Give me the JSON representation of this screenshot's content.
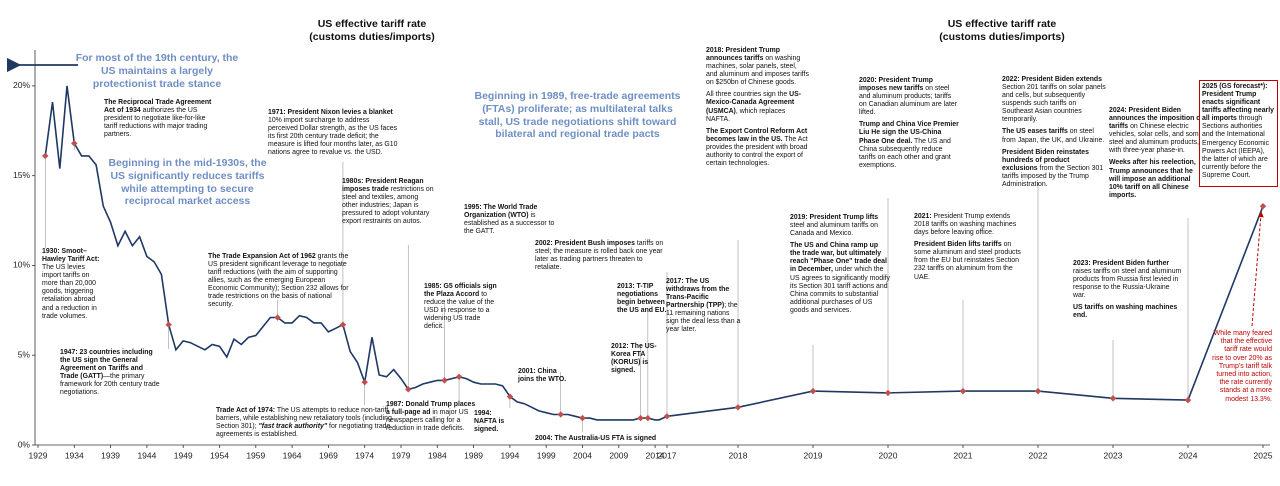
{
  "chart_data": {
    "type": "line",
    "titles": [
      [
        "US effective tariff rate",
        "(customs duties/imports)"
      ],
      [
        "US effective tariff rate",
        "(customs duties/imports)"
      ]
    ],
    "x": [
      1930,
      1931,
      1932,
      1933,
      1934,
      1935,
      1936,
      1937,
      1938,
      1939,
      1940,
      1941,
      1942,
      1943,
      1944,
      1945,
      1946,
      1947,
      1948,
      1949,
      1950,
      1951,
      1952,
      1953,
      1954,
      1955,
      1956,
      1957,
      1958,
      1959,
      1960,
      1961,
      1962,
      1963,
      1964,
      1965,
      1966,
      1967,
      1968,
      1969,
      1970,
      1971,
      1972,
      1973,
      1974,
      1975,
      1976,
      1977,
      1978,
      1979,
      1980,
      1981,
      1982,
      1983,
      1984,
      1985,
      1986,
      1987,
      1988,
      1989,
      1990,
      1991,
      1992,
      1993,
      1994,
      1995,
      1996,
      1997,
      1998,
      1999,
      2000,
      2001,
      2002,
      2003,
      2004,
      2005,
      2006,
      2007,
      2008,
      2009,
      2010,
      2011,
      2012,
      2013,
      2014,
      2015,
      2016,
      2017,
      2018,
      2019,
      2020,
      2021,
      2022,
      2023,
      2024,
      2025
    ],
    "series": [
      {
        "color": "#1f3864",
        "marker_color": "#c0504d",
        "values": [
          16.1,
          19.1,
          15.4,
          20.0,
          16.8,
          16.1,
          16.1,
          15.6,
          13.3,
          12.4,
          11.1,
          11.9,
          11.1,
          11.6,
          10.5,
          10.2,
          9.5,
          6.7,
          5.3,
          5.8,
          5.7,
          5.5,
          5.3,
          5.6,
          5.5,
          4.9,
          5.9,
          5.6,
          6.0,
          6.1,
          6.6,
          7.1,
          7.1,
          6.8,
          6.8,
          7.2,
          7.1,
          6.8,
          6.8,
          6.3,
          6.5,
          6.7,
          5.2,
          4.6,
          3.5,
          6.0,
          3.9,
          3.8,
          4.2,
          3.7,
          3.1,
          3.2,
          3.4,
          3.5,
          3.6,
          3.6,
          3.7,
          3.8,
          3.7,
          3.5,
          3.4,
          3.4,
          3.4,
          3.3,
          2.7,
          2.4,
          2.3,
          2.1,
          1.9,
          1.8,
          1.7,
          1.7,
          1.7,
          1.6,
          1.5,
          1.5,
          1.4,
          1.4,
          1.4,
          1.4,
          1.4,
          1.4,
          1.5,
          1.5,
          1.4,
          1.4,
          1.5,
          1.6,
          2.1,
          3.0,
          2.9,
          3.0,
          3.0,
          2.6,
          2.5,
          13.3
        ]
      }
    ],
    "highlighted_x": [
      1930,
      1934,
      1947,
      1962,
      1971,
      1974,
      1980,
      1985,
      1987,
      1994,
      2001,
      2004,
      2012,
      2013,
      2017,
      2018,
      2019,
      2020,
      2021,
      2022,
      2023,
      2024,
      2025
    ],
    "xlim": [
      1929,
      2025
    ],
    "xticks": [
      1929,
      1934,
      1939,
      1944,
      1949,
      1954,
      1959,
      1964,
      1969,
      1974,
      1979,
      1984,
      1989,
      1994,
      1999,
      2004,
      2009,
      2014,
      2017,
      2018,
      2019,
      2020,
      2021,
      2022,
      2023,
      2024,
      2025
    ],
    "ylim": [
      0,
      22
    ],
    "yticks": [
      {
        "value": 0,
        "label": "0%"
      },
      {
        "value": 5,
        "label": "5%"
      },
      {
        "value": 10,
        "label": "10%"
      },
      {
        "value": 15,
        "label": "15%"
      },
      {
        "value": 20,
        "label": "20%"
      }
    ],
    "grid": false,
    "callouts": [
      "For most of the 19th century, the US maintains a largely protectionist trade stance",
      "Beginning in the mid-1930s, the US significantly reduces tariffs while attempting to secure reciprocal market access",
      "Beginning in 1989, free-trade agreements (FTAs) proliferate; as multilateral talks stall, US trade negotiations shift toward bilateral and regional trade pacts"
    ],
    "note": "While many feared that the effective tariff rate would rise to over 20% as Trump's tariff talk turned into action, the rate currently stands at a more modest 13.3%.",
    "annotations": [
      {
        "paragraphs": [
          [
            {
              "bold": "1930: Smoot–Hawley Tariff Act:"
            },
            {
              "text": " The US levies import tariffs on more than 20,000 goods, triggering retaliation abroad and a reduction in trade volumes."
            }
          ]
        ]
      },
      {
        "paragraphs": [
          [
            {
              "bold": "The Reciprocal Trade Agreement Act of 1934"
            },
            {
              "text": " authorizes the US president to negotiate like-for-like tariff reductions with major trading partners."
            }
          ]
        ]
      },
      {
        "paragraphs": [
          [
            {
              "bold": "1947: 23 countries including the US sign the General Agreement on Tariffs and Trade (GATT)"
            },
            {
              "text": "—the primary framework for 20th century trade negotiations."
            }
          ]
        ]
      },
      {
        "paragraphs": [
          [
            {
              "bold": "The Trade Expansion Act of 1962"
            },
            {
              "text": " grants the US president significant leverage to negotiate tariff reductions (with the aim of supporting allies, such as the emerging European Economic Community); Section 232 allows for trade restrictions on the basis of national security."
            }
          ]
        ]
      },
      {
        "paragraphs": [
          [
            {
              "bold": "1971: President Nixon levies a blanket"
            },
            {
              "text": " 10% import surcharge to address perceived Dollar strength, as the US faces its first 20th century trade deficit; the measure is lifted four months later, as G10 nations agree to revalue vs. the USD."
            }
          ]
        ]
      },
      {
        "paragraphs": [
          [
            {
              "bold": "Trade Act of 1974:"
            },
            {
              "text": " The US attempts to reduce non-tariff barriers, while establishing new retaliatory tools (including Section 301); "
            },
            {
              "bold_italic": "\"fast track authority\""
            },
            {
              "text": " for negotiating trade agreements is established."
            }
          ]
        ]
      },
      {
        "paragraphs": [
          [
            {
              "bold": "1980s: President Reagan imposes trade"
            },
            {
              "text": " restrictions on steel and textiles, among other industries; Japan is pressured to adopt voluntary export restraints on autos."
            }
          ]
        ]
      },
      {
        "paragraphs": [
          [
            {
              "bold": "1985: G5 officials sign the Plaza Accord"
            },
            {
              "text": " to reduce the value of the USD in response to a widening US trade deficit."
            }
          ]
        ]
      },
      {
        "paragraphs": [
          [
            {
              "bold": "1987: Donald Trump places a full-page ad"
            },
            {
              "text": " in major US newspapers calling for a reduction in trade deficits."
            }
          ]
        ]
      },
      {
        "paragraphs": [
          [
            {
              "bold": "1995: The World Trade Organization (WTO)"
            },
            {
              "text": " is established as a successor to the GATT."
            }
          ]
        ]
      },
      {
        "paragraphs": [
          [
            {
              "bold": "1994: NAFTA is signed."
            }
          ]
        ]
      },
      {
        "paragraphs": [
          [
            {
              "bold": "2002: President Bush imposes"
            },
            {
              "text": " tariffs on steel; the measure is rolled back one year later as trading partners threaten to retaliate."
            }
          ]
        ]
      },
      {
        "paragraphs": [
          [
            {
              "bold": "2001: China joins the WTO."
            }
          ]
        ]
      },
      {
        "paragraphs": [
          [
            {
              "bold": "2004: The Australia-US FTA is signed"
            }
          ]
        ]
      },
      {
        "paragraphs": [
          [
            {
              "bold": "2012: The US-Korea FTA (KORUS) is signed."
            }
          ]
        ]
      },
      {
        "paragraphs": [
          [
            {
              "bold": "2013: T-TIP negotiations begin between the US and EU."
            }
          ]
        ]
      },
      {
        "paragraphs": [
          [
            {
              "bold": "2017: The US withdraws from the Trans-Pacific Partnership (TPP)"
            },
            {
              "text": "; the 11 remaining nations sign the deal less than a year later."
            }
          ]
        ]
      },
      {
        "paragraphs": [
          [
            {
              "bold": "2018: President Trump announces tariffs"
            },
            {
              "text": " on washing machines, solar panels, steel, and aluminum and imposes tariffs on $250bn of Chinese goods."
            }
          ],
          [
            {
              "text": "All three countries sign the "
            },
            {
              "bold": "US-Mexico-Canada Agreement (USMCA)"
            },
            {
              "text": ", which replaces NAFTA."
            }
          ],
          [
            {
              "bold": "The Export Control Reform Act becomes law in the US."
            },
            {
              "text": " The Act provides the president with broad authority to control the export of certain technologies."
            }
          ]
        ]
      },
      {
        "paragraphs": [
          [
            {
              "bold": "2019: President Trump lifts"
            },
            {
              "text": " steel and aluminum tariffs on Canada and Mexico."
            }
          ],
          [
            {
              "bold": "The US and China ramp up the trade war, but ultimately reach \"Phase One\" trade deal in December,"
            },
            {
              "text": " under which the US agrees to significantly modify its Section 301 tariff actions and China commits to substantial additional purchases of US goods and services."
            }
          ]
        ]
      },
      {
        "paragraphs": [
          [
            {
              "bold": "2020: President Trump imposes new tariffs"
            },
            {
              "text": " on steel and aluminum products; tariffs on Canadian aluminum are later lifted."
            }
          ],
          [
            {
              "bold": "Trump and China Vice Premier Liu He sign the US-China Phase One deal."
            },
            {
              "text": " The US and China subsequently reduce tariffs on each other and grant exemptions."
            }
          ]
        ]
      },
      {
        "paragraphs": [
          [
            {
              "bold": "2021:"
            },
            {
              "text": " President Trump extends 2018 tariffs on washing machines days before leaving office."
            }
          ],
          [
            {
              "bold": "President Biden lifts tariffs"
            },
            {
              "text": " on some aluminum and steel products from the EU but reinstates Section 232 tariffs on aluminum from the UAE."
            }
          ]
        ]
      },
      {
        "paragraphs": [
          [
            {
              "bold": "2022: President Biden extends"
            },
            {
              "text": " Section 201 tariffs on solar panels and cells, but subsequently suspends such tariffs on Southeast Asian countries temporarily."
            }
          ],
          [
            {
              "bold": "The US eases tariffs"
            },
            {
              "text": " on steel from Japan, the UK, and Ukraine."
            }
          ],
          [
            {
              "bold": "President Biden reinstates hundreds of product exclusions"
            },
            {
              "text": " from the Section 301 tariffs imposed by the Trump Administration."
            }
          ]
        ]
      },
      {
        "paragraphs": [
          [
            {
              "bold": "2023: President Biden further"
            },
            {
              "text": " raises tariffs on steel and aluminum products from Russia first levied in response to the Russia-Ukraine war."
            }
          ],
          [
            {
              "bold": "US tariffs on washing machines end."
            }
          ]
        ]
      },
      {
        "paragraphs": [
          [
            {
              "bold": "2024: President Biden announces the imposition of tariffs"
            },
            {
              "text": " on Chinese electric vehicles, solar cells, and some steel and aluminum products, with three-year phase-in."
            }
          ],
          [
            {
              "bold": "Weeks after his reelection, Trump announces that he will impose an additional 10% tariff on all Chinese imports."
            }
          ]
        ]
      },
      {
        "paragraphs": [
          [
            {
              "bold": "2025 (GS forecast*): President Trump enacts significant tariffs affecting nearly all imports"
            },
            {
              "text": " through Sections authorities and the International Emergency Economic Powers Act (IEEPA), the latter of which are currently before the Supreme Court."
            }
          ]
        ]
      }
    ]
  }
}
